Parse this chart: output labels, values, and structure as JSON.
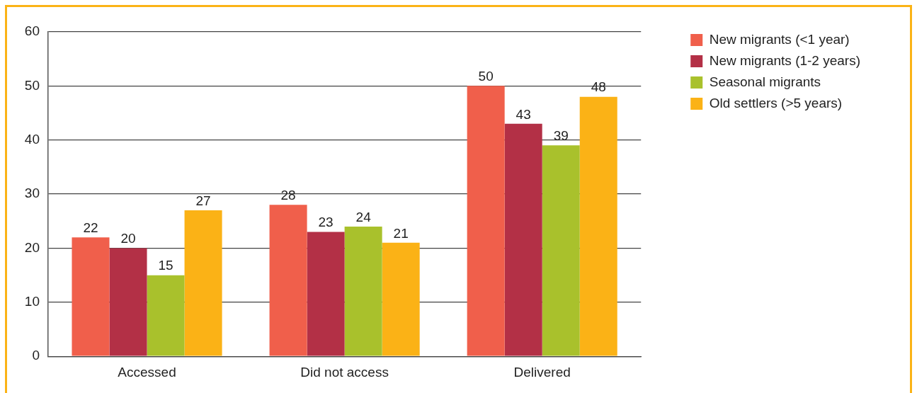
{
  "chart_data": {
    "type": "bar",
    "categories": [
      "Accessed",
      "Did not access",
      "Delivered"
    ],
    "series": [
      {
        "name": "New migrants (<1 year)",
        "color": "#f05f4b",
        "values": [
          22,
          28,
          50
        ]
      },
      {
        "name": "New migrants (1-2 years)",
        "color": "#b33046",
        "values": [
          20,
          23,
          43
        ]
      },
      {
        "name": "Seasonal migrants",
        "color": "#a9c12c",
        "values": [
          15,
          24,
          39
        ]
      },
      {
        "name": "Old settlers (>5 years)",
        "color": "#fbb216",
        "values": [
          27,
          21,
          48
        ]
      }
    ],
    "ylim": [
      0,
      60
    ],
    "yticks": [
      0,
      10,
      20,
      30,
      40,
      50,
      60
    ],
    "grid": "y",
    "legend": "top right",
    "data_labels": true
  }
}
